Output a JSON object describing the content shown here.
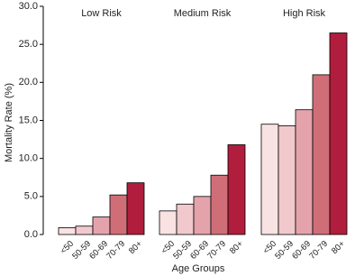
{
  "chart_data": {
    "type": "bar",
    "categories": [
      "Low Risk",
      "Medium Risk",
      "High Risk"
    ],
    "series": [
      {
        "name": "<50",
        "color": "#f9e2e2",
        "values": [
          0.9,
          3.1,
          14.5
        ]
      },
      {
        "name": "50-59",
        "color": "#f1c9cd",
        "values": [
          1.1,
          4.0,
          14.3
        ]
      },
      {
        "name": "60-69",
        "color": "#e4a3ab",
        "values": [
          2.3,
          5.0,
          16.4
        ]
      },
      {
        "name": "70-79",
        "color": "#d06e77",
        "values": [
          5.2,
          7.8,
          21.0
        ]
      },
      {
        "name": "80+",
        "color": "#b01d3d",
        "values": [
          6.8,
          11.8,
          26.5
        ]
      }
    ],
    "x_label": "Age Groups",
    "y_label": "Mortality Rate (%)",
    "ylim": [
      0,
      30
    ],
    "yticks": [
      {
        "value": 0,
        "label": "0.0"
      },
      {
        "value": 5,
        "label": "5.0"
      },
      {
        "value": 10,
        "label": "10.0"
      },
      {
        "value": 15,
        "label": "15.0"
      },
      {
        "value": 20,
        "label": "20.0"
      },
      {
        "value": 25,
        "label": "25.0"
      },
      {
        "value": 30,
        "label": "30.0"
      }
    ]
  }
}
